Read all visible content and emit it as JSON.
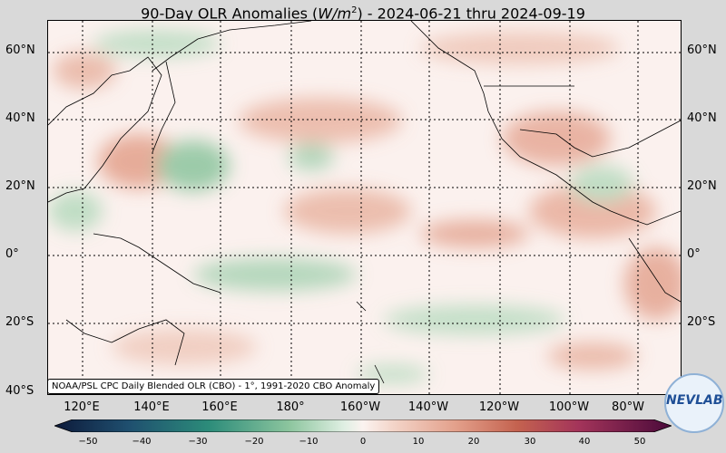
{
  "title": {
    "prefix": "90-Day OLR Anomalies (",
    "unit_base": "W/m",
    "unit_exp": "2",
    "suffix": ") - 2024-06-21 thru 2024-09-19"
  },
  "credit": "NOAA/PSL CPC Daily Blended OLR (CBO) - 1°, 1991-2020 CBO Anomaly",
  "lat_labels": [
    "60°N",
    "40°N",
    "20°N",
    "0°",
    "20°S",
    "40°S"
  ],
  "lon_labels": [
    "120°E",
    "140°E",
    "160°E",
    "180°",
    "160°W",
    "140°W",
    "120°W",
    "100°W",
    "80°W"
  ],
  "colorbar": {
    "ticks": [
      "−50",
      "−40",
      "−30",
      "−20",
      "−10",
      "0",
      "10",
      "20",
      "30",
      "40",
      "50"
    ],
    "min": -50,
    "max": 50
  },
  "logo": {
    "text": "NEVLAB"
  },
  "map": {
    "lat_range": [
      -40,
      67
    ],
    "lon_range_east": [
      107,
      286
    ]
  }
}
